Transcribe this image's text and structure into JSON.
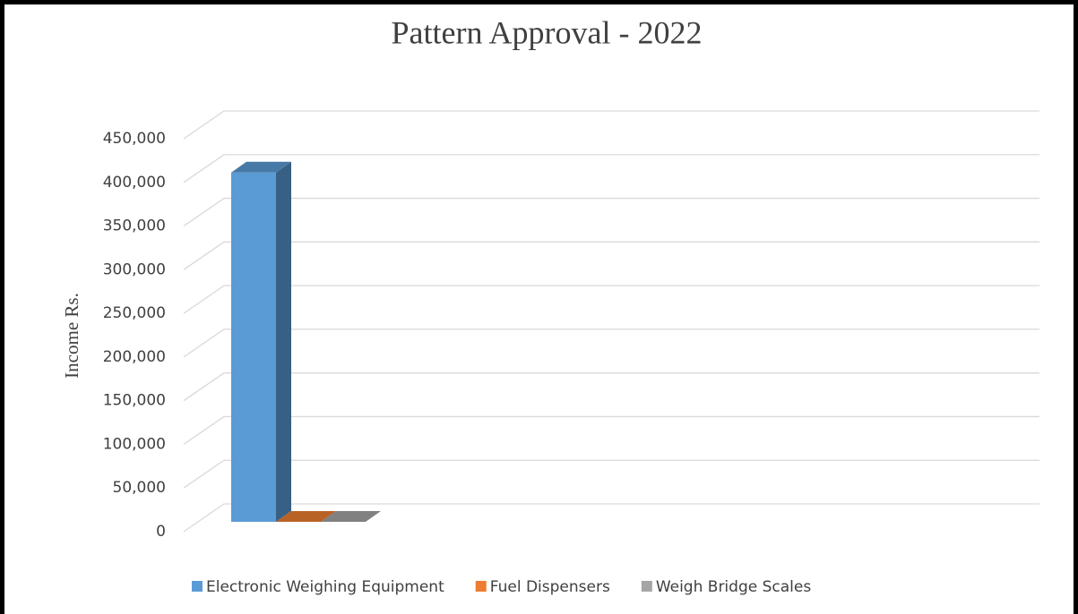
{
  "chart_data": {
    "type": "bar3d",
    "title": "Pattern Approval - 2022",
    "y_label": "Income Rs.",
    "categories": [
      null
    ],
    "series": [
      {
        "name": "Electronic Weighing Equipment",
        "color": "#5b9bd5",
        "values": [
          400000
        ]
      },
      {
        "name": "Fuel Dispensers",
        "color": "#ed7d31",
        "values": [
          0
        ]
      },
      {
        "name": "Weigh Bridge Scales",
        "color": "#a5a5a5",
        "values": [
          0
        ]
      }
    ],
    "ylim": [
      0,
      450000
    ],
    "yticks": [
      0,
      {
        "value": 50000,
        "label": "50,000"
      },
      {
        "value": 100000,
        "label": "100,000"
      },
      {
        "value": 150000,
        "label": "150,000"
      },
      {
        "value": 200000,
        "label": "200,000"
      },
      {
        "value": 250000,
        "label": "250,000"
      },
      {
        "value": 300000,
        "label": "300,000"
      },
      {
        "value": 350000,
        "label": "350,000"
      },
      {
        "value": 400000,
        "label": "400,000"
      },
      {
        "value": 450000,
        "label": "450,000"
      }
    ],
    "grid": true,
    "legend": "bottom"
  }
}
